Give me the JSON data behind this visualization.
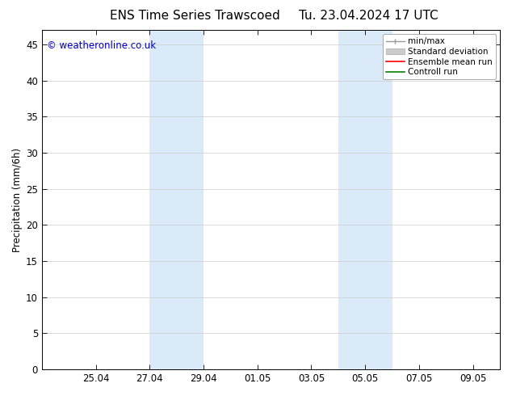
{
  "title_left": "ENS Time Series Trawscoed",
  "title_right": "Tu. 23.04.2024 17 UTC",
  "ylabel": "Precipitation (mm/6h)",
  "watermark": "© weatheronline.co.uk",
  "watermark_color": "#0000cc",
  "background_color": "#ffffff",
  "plot_bg_color": "#ffffff",
  "ylim": [
    0,
    47
  ],
  "yticks": [
    0,
    5,
    10,
    15,
    20,
    25,
    30,
    35,
    40,
    45
  ],
  "tick_positions": [
    2,
    4,
    6,
    8,
    10,
    12,
    14,
    16
  ],
  "tick_labels": [
    "25.04",
    "27.04",
    "29.04",
    "01.05",
    "03.05",
    "05.05",
    "07.05",
    "09.05"
  ],
  "x_min": 0.0,
  "x_max": 17.0,
  "shaded_bands": [
    {
      "x_start": 4.0,
      "x_end": 6.0
    },
    {
      "x_start": 11.0,
      "x_end": 13.0
    }
  ],
  "shaded_color": "#daeaf8",
  "legend_items": [
    {
      "label": "min/max",
      "color": "#999999"
    },
    {
      "label": "Standard deviation",
      "color": "#cccccc"
    },
    {
      "label": "Ensemble mean run",
      "color": "#ff0000"
    },
    {
      "label": "Controll run",
      "color": "#008000"
    }
  ],
  "title_fontsize": 11,
  "axis_fontsize": 8.5,
  "watermark_fontsize": 8.5,
  "legend_fontsize": 7.5
}
